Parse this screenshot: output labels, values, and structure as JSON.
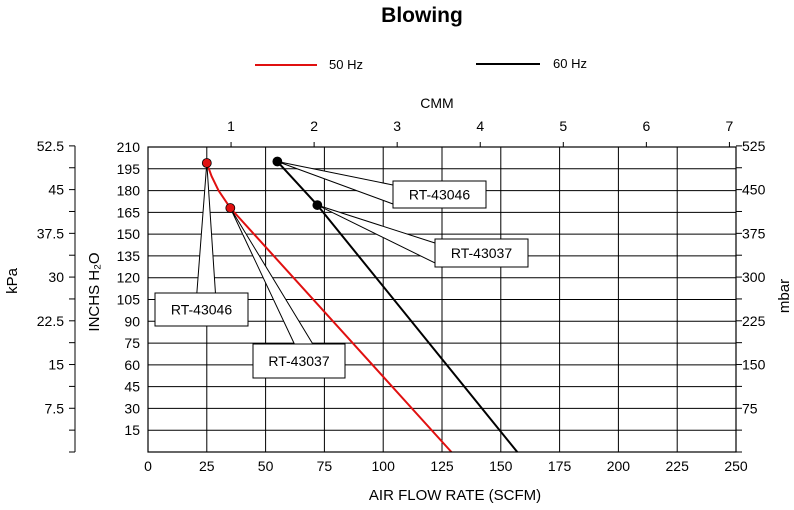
{
  "chart_data": {
    "type": "line",
    "title": "Blowing",
    "xlabel": "AIR FLOW RATE (SCFM)",
    "xlabel_top": "CMM",
    "ylabel": "INCHS H₂O",
    "ylabel_left": "kPa",
    "ylabel_right": "mbar",
    "xlim": [
      0,
      250
    ],
    "ylim": [
      0,
      210
    ],
    "x_ticks": [
      "0",
      "25",
      "50",
      "75",
      "100",
      "125",
      "150",
      "175",
      "200",
      "225",
      "250"
    ],
    "y_ticks": [
      "15",
      "30",
      "45",
      "60",
      "75",
      "90",
      "105",
      "120",
      "135",
      "150",
      "165",
      "180",
      "195",
      "210"
    ],
    "top_ticks": [
      "1",
      "2",
      "3",
      "4",
      "5",
      "6",
      "7"
    ],
    "left_ticks": [
      "52.5",
      "45",
      "37.5",
      "30",
      "22.5",
      "15",
      "7.5"
    ],
    "right_ticks": [
      "525",
      "450",
      "375",
      "300",
      "225",
      "150",
      "75"
    ],
    "grid": true,
    "legend_position": "top",
    "series": [
      {
        "name": "50 Hz",
        "color": "#e01010",
        "points": [
          [
            25,
            199
          ],
          [
            27,
            190
          ],
          [
            30,
            180
          ],
          [
            35,
            168
          ],
          [
            129,
            0
          ]
        ]
      },
      {
        "name": "60 Hz",
        "color": "#000000",
        "points": [
          [
            55,
            200
          ],
          [
            72,
            170
          ],
          [
            157,
            0
          ]
        ]
      }
    ],
    "annotations": [
      {
        "text": "RT-43046",
        "series": "60 Hz",
        "point": [
          55,
          200
        ],
        "color": "#000000"
      },
      {
        "text": "RT-43037",
        "series": "60 Hz",
        "point": [
          72,
          170
        ],
        "color": "#000000"
      },
      {
        "text": "RT-43046",
        "series": "50 Hz",
        "point": [
          25,
          199
        ],
        "color": "#e01010"
      },
      {
        "text": "RT-43037",
        "series": "50 Hz",
        "point": [
          35,
          168
        ],
        "color": "#e01010"
      }
    ]
  }
}
